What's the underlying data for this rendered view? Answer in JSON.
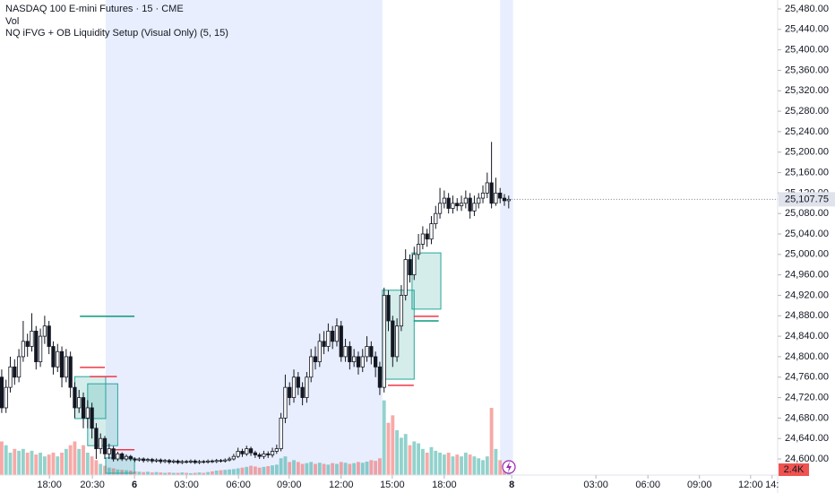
{
  "chart_data": {
    "type": "candlestick",
    "title": "NASDAQ 100 E-mini Futures · 15 · CME",
    "volume_title": "Vol",
    "indicator_title": "NQ iFVG + OB Liquidity Setup (Visual Only) (5, 15)",
    "up_color": "#ffffff",
    "down_color": "#131722",
    "volume_up_color": "#26a69a",
    "volume_down_color": "#ef5350",
    "open": [
      24760,
      24700,
      24740,
      24780,
      24760,
      24800,
      24830,
      24820,
      24850,
      24790,
      24840,
      24860,
      24820,
      24780,
      24810,
      24760,
      24800,
      24740,
      24700,
      24720,
      24680,
      24700,
      24660,
      24620,
      24640,
      24610,
      24620,
      24600,
      24610,
      24600,
      24605,
      24600,
      24598,
      24600,
      24597,
      24599,
      24596,
      24598,
      24595,
      24597,
      24594,
      24596,
      24593,
      24595,
      24594,
      24596,
      24593,
      24595,
      24594,
      24596,
      24595,
      24597,
      24596,
      24598,
      24600,
      24605,
      24615,
      24610,
      24620,
      24612,
      24608,
      24605,
      24610,
      24608,
      24615,
      24620,
      24680,
      24740,
      24720,
      24760,
      24740,
      24720,
      24760,
      24800,
      24790,
      24830,
      24820,
      24850,
      24830,
      24860,
      24800,
      24820,
      24790,
      24800,
      24780,
      24800,
      24820,
      24800,
      24780,
      24740,
      24920,
      24870,
      24800,
      24860,
      24920,
      24990,
      24960,
      25000,
      25020,
      25040,
      25030,
      25060,
      25080,
      25100,
      25110,
      25090,
      25100,
      25095,
      25100,
      25110,
      25085,
      25100,
      25110,
      25120,
      25140,
      25100,
      25120,
      25110,
      25105
    ],
    "high": [
      24775,
      24755,
      24800,
      24795,
      24815,
      24870,
      24845,
      24885,
      24860,
      24855,
      24880,
      24870,
      24830,
      24825,
      24820,
      24815,
      24810,
      24750,
      24735,
      24730,
      24715,
      24710,
      24670,
      24650,
      24645,
      24630,
      24625,
      24614,
      24613,
      24609,
      24608,
      24603,
      24603,
      24603,
      24602,
      24602,
      24601,
      24601,
      24600,
      24600,
      24599,
      24599,
      24598,
      24598,
      24599,
      24599,
      24598,
      24598,
      24599,
      24599,
      24600,
      24600,
      24601,
      24604,
      24610,
      24622,
      24620,
      24626,
      24624,
      24616,
      24612,
      24616,
      24615,
      24622,
      24628,
      24690,
      24765,
      24750,
      24775,
      24770,
      24750,
      24770,
      24815,
      24820,
      24845,
      24850,
      24865,
      24860,
      24875,
      24870,
      24835,
      24830,
      24815,
      24810,
      24815,
      24840,
      24830,
      24810,
      24790,
      24935,
      24930,
      24880,
      24875,
      24940,
      25010,
      25000,
      25015,
      25040,
      25055,
      25050,
      25075,
      25095,
      25130,
      25125,
      25120,
      25115,
      25110,
      25115,
      25125,
      25120,
      25115,
      25120,
      25135,
      25160,
      25220,
      25150,
      25130,
      25118,
      25115
    ],
    "low": [
      24690,
      24690,
      24730,
      24745,
      24750,
      24790,
      24800,
      24810,
      24775,
      24780,
      24825,
      24805,
      24765,
      24770,
      24740,
      24750,
      24720,
      24680,
      24690,
      24660,
      24660,
      24640,
      24600,
      24610,
      24600,
      24600,
      24595,
      24596,
      24596,
      24596,
      24596,
      24594,
      24595,
      24593,
      24594,
      24592,
      24593,
      24591,
      24592,
      24590,
      24591,
      24590,
      24590,
      24591,
      24591,
      24590,
      24590,
      24591,
      24591,
      24592,
      24592,
      24593,
      24593,
      24595,
      24597,
      24602,
      24604,
      24606,
      24606,
      24602,
      24600,
      24600,
      24602,
      24603,
      24610,
      24615,
      24670,
      24705,
      24710,
      24725,
      24705,
      24710,
      24750,
      24775,
      24780,
      24805,
      24810,
      24815,
      24820,
      24790,
      24790,
      24775,
      24780,
      24765,
      24770,
      24790,
      24785,
      24760,
      24725,
      24730,
      24850,
      24780,
      24790,
      24850,
      24910,
      24945,
      24950,
      24990,
      25010,
      25015,
      25020,
      25050,
      25070,
      25090,
      25080,
      25080,
      25085,
      25085,
      25090,
      25070,
      25075,
      25090,
      25100,
      25110,
      25090,
      25095,
      25100,
      25095,
      25090
    ],
    "close": [
      24700,
      24740,
      24780,
      24760,
      24800,
      24830,
      24820,
      24850,
      24790,
      24840,
      24860,
      24820,
      24780,
      24810,
      24760,
      24800,
      24740,
      24700,
      24720,
      24680,
      24700,
      24660,
      24620,
      24640,
      24610,
      24620,
      24600,
      24610,
      24600,
      24605,
      24600,
      24598,
      24600,
      24597,
      24599,
      24596,
      24598,
      24595,
      24597,
      24594,
      24596,
      24593,
      24595,
      24594,
      24596,
      24593,
      24595,
      24594,
      24596,
      24595,
      24597,
      24596,
      24598,
      24600,
      24605,
      24615,
      24610,
      24620,
      24612,
      24608,
      24605,
      24610,
      24608,
      24615,
      24620,
      24680,
      24740,
      24720,
      24760,
      24740,
      24720,
      24760,
      24800,
      24790,
      24830,
      24820,
      24850,
      24830,
      24860,
      24800,
      24820,
      24790,
      24800,
      24780,
      24800,
      24820,
      24800,
      24780,
      24740,
      24920,
      24870,
      24800,
      24860,
      24920,
      24990,
      24960,
      25000,
      25020,
      25040,
      25030,
      25060,
      25080,
      25100,
      25110,
      25090,
      25100,
      25095,
      25100,
      25110,
      25085,
      25100,
      25110,
      25120,
      25140,
      25100,
      25120,
      25110,
      25105,
      25107.75
    ],
    "volume": [
      9000,
      8000,
      6000,
      7000,
      6500,
      7000,
      6000,
      6500,
      5500,
      6000,
      5000,
      5500,
      6000,
      5000,
      6000,
      7000,
      8000,
      9000,
      7000,
      8000,
      6000,
      5000,
      4000,
      3000,
      2500,
      2000,
      1800,
      1500,
      1400,
      1300,
      1200,
      1000,
      900,
      800,
      900,
      700,
      800,
      700,
      600,
      700,
      600,
      600,
      700,
      600,
      500,
      600,
      700,
      600,
      800,
      1000,
      1200,
      1300,
      1400,
      1500,
      1600,
      1800,
      2000,
      2200,
      2500,
      2300,
      2000,
      2200,
      2400,
      2600,
      2800,
      4500,
      5000,
      3500,
      4000,
      3500,
      3000,
      3200,
      3500,
      3000,
      3300,
      3000,
      2800,
      3200,
      3000,
      3500,
      3300,
      3000,
      3200,
      3500,
      3300,
      3600,
      4000,
      3800,
      4500,
      20000,
      14000,
      16000,
      12000,
      10000,
      11000,
      8000,
      9000,
      8500,
      7000,
      6000,
      7500,
      6500,
      6000,
      5500,
      6000,
      5000,
      5500,
      5000,
      6000,
      5500,
      5000,
      4500,
      4000,
      5000,
      18000,
      7000,
      4000,
      3000,
      2400
    ],
    "volume_last_label": "2.4K",
    "volume_lim": [
      0,
      24000
    ],
    "xlim": [
      -0.4,
      180.6
    ],
    "xticks": [
      {
        "value": 11.1,
        "label": "18:00"
      },
      {
        "value": 21.1,
        "label": "20:30"
      },
      {
        "value": 30.9,
        "label": "6"
      },
      {
        "value": 43.0,
        "label": "03:00"
      },
      {
        "value": 55.1,
        "label": "06:00"
      },
      {
        "value": 66.9,
        "label": "09:00"
      },
      {
        "value": 79.0,
        "label": "12:00"
      },
      {
        "value": 90.9,
        "label": "15:00"
      },
      {
        "value": 103.0,
        "label": "18:00"
      },
      {
        "value": 118.7,
        "label": "8"
      },
      {
        "value": 138.3,
        "label": "03:00"
      },
      {
        "value": 150.4,
        "label": "06:00"
      },
      {
        "value": 162.4,
        "label": "09:00"
      },
      {
        "value": 174.3,
        "label": "12:00"
      },
      {
        "value": 179.3,
        "label": "14:"
      }
    ],
    "ylim": [
      24568.5,
      25497.5
    ],
    "yticks": [
      {
        "value": 24600,
        "label": "24,600.00"
      },
      {
        "value": 24640,
        "label": "24,640.00"
      },
      {
        "value": 24680,
        "label": "24,680.00"
      },
      {
        "value": 24720,
        "label": "24,720.00"
      },
      {
        "value": 24760,
        "label": "24,760.00"
      },
      {
        "value": 24800,
        "label": "24,800.00"
      },
      {
        "value": 24840,
        "label": "24,840.00"
      },
      {
        "value": 24880,
        "label": "24,880.00"
      },
      {
        "value": 24920,
        "label": "24,920.00"
      },
      {
        "value": 24960,
        "label": "24,960.00"
      },
      {
        "value": 25000,
        "label": "25,000.00"
      },
      {
        "value": 25040,
        "label": "25,040.00"
      },
      {
        "value": 25080,
        "label": "25,080.00"
      },
      {
        "value": 25120,
        "label": "25,120.00"
      },
      {
        "value": 25160,
        "label": "25,160.00"
      },
      {
        "value": 25200,
        "label": "25,200.00"
      },
      {
        "value": 25240,
        "label": "25,240.00"
      },
      {
        "value": 25280,
        "label": "25,280.00"
      },
      {
        "value": 25320,
        "label": "25,320.00"
      },
      {
        "value": 25360,
        "label": "25,360.00"
      },
      {
        "value": 25400,
        "label": "25,400.00"
      },
      {
        "value": 25440,
        "label": "25,440.00"
      },
      {
        "value": 25480,
        "label": "25,480.00"
      }
    ],
    "last_price": {
      "value": 25107.75,
      "label": "25,107.75"
    },
    "sessions": [
      {
        "x0": 24.2,
        "x1": 88.6,
        "color": "#e8eefd"
      },
      {
        "x0": 116,
        "x1": 119,
        "color": "#e8eefd"
      }
    ],
    "zones": [
      {
        "x0": 17,
        "x1": 24.2,
        "top": 24761,
        "bottom": 24679,
        "color": "#26a69a"
      },
      {
        "x0": 20,
        "x1": 27,
        "top": 24747,
        "bottom": 24626,
        "color": "#26a69a"
      },
      {
        "x0": 24.2,
        "x1": 30.9,
        "top": 24602,
        "bottom": 24572,
        "color": "#26a69a"
      },
      {
        "x0": 88.6,
        "x1": 96,
        "top": 24930,
        "bottom": 24756,
        "color": "#26a69a"
      },
      {
        "x0": 95.5,
        "x1": 102.2,
        "top": 25003,
        "bottom": 24893,
        "color": "#26a69a"
      }
    ],
    "levels": [
      {
        "x0": 18.2,
        "x1": 30.9,
        "price": 24879,
        "color": "#089981"
      },
      {
        "x0": 18.2,
        "x1": 24,
        "price": 24779,
        "color": "#f23645"
      },
      {
        "x0": 20.5,
        "x1": 26.8,
        "price": 24761,
        "color": "#f23645"
      },
      {
        "x0": 25,
        "x1": 30.9,
        "price": 24618,
        "color": "#f23645"
      },
      {
        "x0": 95.9,
        "x1": 101.7,
        "price": 24879,
        "color": "#f23645"
      },
      {
        "x0": 95.9,
        "x1": 101.7,
        "price": 24870,
        "color": "#089981"
      },
      {
        "x0": 89.9,
        "x1": 95.9,
        "price": 24744,
        "color": "#f23645"
      }
    ]
  }
}
